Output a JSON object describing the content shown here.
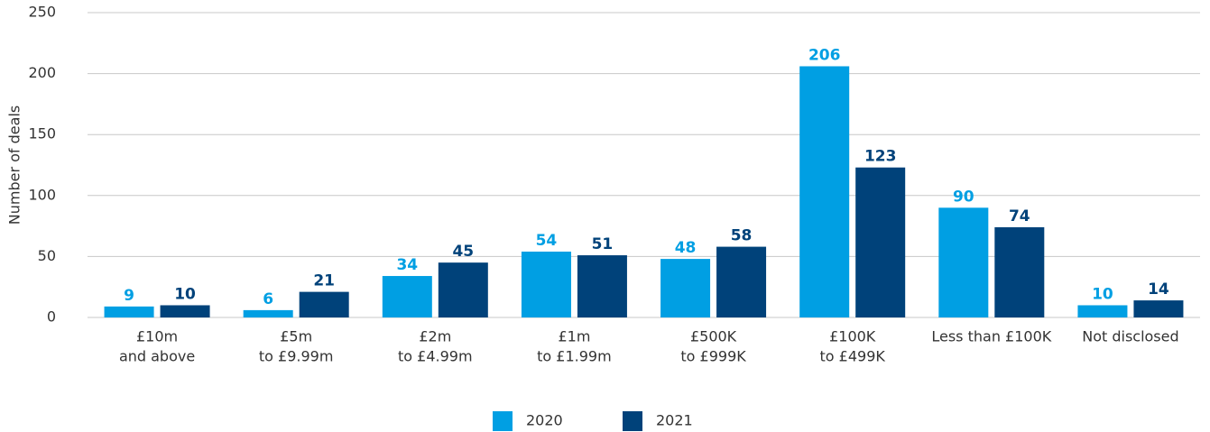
{
  "chart_data": {
    "type": "bar",
    "y_label": "Number of deals",
    "categories": [
      [
        "£10m",
        "and above"
      ],
      [
        "£5m",
        "to £9.99m"
      ],
      [
        "£2m",
        "to £4.99m"
      ],
      [
        "£1m",
        "to £1.99m"
      ],
      [
        "£500K",
        "to £999K"
      ],
      [
        "£100K",
        "to £499K"
      ],
      [
        "Less than £100K"
      ],
      [
        "Not disclosed"
      ]
    ],
    "series": [
      {
        "name": "2020",
        "color": "#009fe3",
        "values": [
          9,
          6,
          34,
          54,
          48,
          206,
          90,
          10
        ]
      },
      {
        "name": "2021",
        "color": "#00427a",
        "values": [
          10,
          21,
          45,
          51,
          58,
          123,
          74,
          14
        ]
      }
    ],
    "ylim": [
      0,
      250
    ],
    "yticks": [
      0,
      50,
      100,
      150,
      200,
      250
    ],
    "grid": true,
    "legend": "bottom"
  }
}
